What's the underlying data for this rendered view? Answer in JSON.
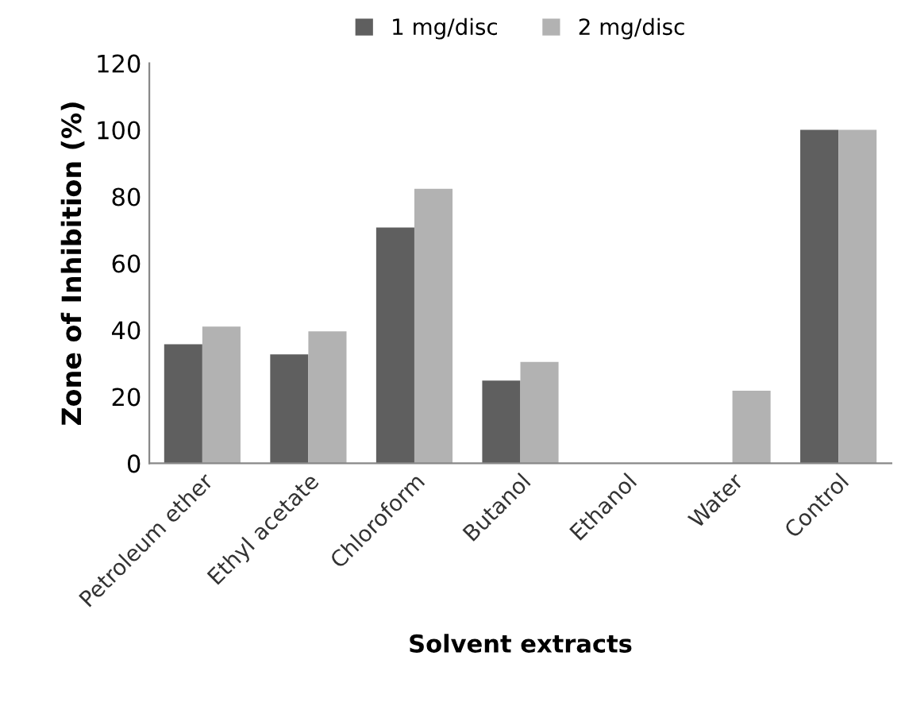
{
  "chart_data": {
    "type": "bar",
    "xlabel": "Solvent extracts",
    "ylabel": "Zone of Inhibition (%)",
    "categories": [
      "Petroleum ether",
      "Ethyl acetate",
      "Chloroform",
      "Butanol",
      "Ethanol",
      "Water",
      "Control"
    ],
    "series": [
      {
        "name": "1 mg/disc",
        "color": "#5f5f5f",
        "values": [
          35.7,
          32.7,
          70.7,
          24.8,
          0,
          0,
          100
        ]
      },
      {
        "name": "2 mg/disc",
        "color": "#b2b2b2",
        "values": [
          41,
          39.6,
          82.3,
          30.4,
          0,
          21.8,
          100
        ]
      }
    ],
    "ylim": [
      0,
      120
    ],
    "yticks": [
      0,
      20,
      40,
      60,
      80,
      100,
      120
    ],
    "grid": false,
    "legend": "top"
  }
}
